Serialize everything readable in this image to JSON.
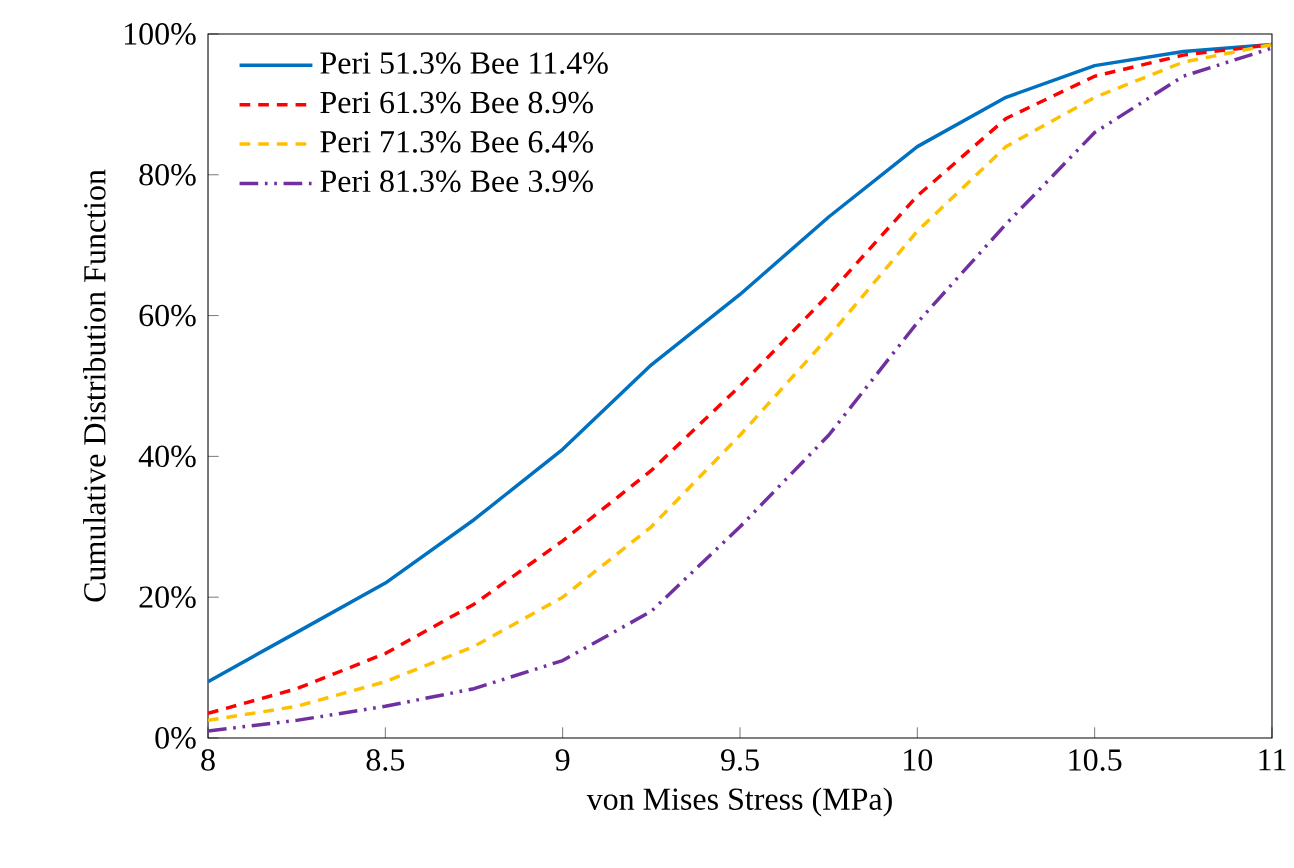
{
  "chart_data": {
    "type": "line",
    "xlabel": "von Mises Stress (MPa)",
    "ylabel": "Cumulative Distribution Function",
    "x": [
      8,
      8.25,
      8.5,
      8.75,
      9,
      9.25,
      9.5,
      9.75,
      10,
      10.25,
      10.5,
      10.75,
      11
    ],
    "series": [
      {
        "name": "Peri 51.3% Bee 11.4%",
        "color": "#0070c0",
        "line_style": "solid",
        "values": [
          8,
          15,
          22,
          31,
          41,
          53,
          63,
          74,
          84,
          91,
          95.5,
          97.5,
          98.5
        ]
      },
      {
        "name": "Peri 61.3% Bee 8.9%",
        "color": "#ff0000",
        "line_style": "dashed",
        "values": [
          3.5,
          7,
          12,
          19,
          28,
          38,
          50,
          63,
          77,
          88,
          94,
          97,
          98.5
        ]
      },
      {
        "name": "Peri 71.3% Bee 6.4%",
        "color": "#ffc000",
        "line_style": "dashed",
        "values": [
          2.5,
          4.5,
          8,
          13,
          20,
          30,
          43,
          57,
          72,
          84,
          91,
          96,
          98.5
        ]
      },
      {
        "name": "Peri 81.3% Bee 3.9%",
        "color": "#7030a0",
        "line_style": "dotted",
        "values": [
          1,
          2.5,
          4.5,
          7,
          11,
          18,
          30,
          43,
          59,
          73,
          86,
          94,
          98
        ]
      }
    ],
    "xlim": [
      8,
      11
    ],
    "xticks": [
      8,
      8.5,
      9,
      9.5,
      10,
      10.5,
      11
    ],
    "ylim": [
      0,
      100
    ],
    "yticks": [
      {
        "value": 0,
        "label": "0%"
      },
      {
        "value": 20,
        "label": "20%"
      },
      {
        "value": 40,
        "label": "40%"
      },
      {
        "value": 60,
        "label": "60%"
      },
      {
        "value": 80,
        "label": "80%"
      },
      {
        "value": 100,
        "label": "100%"
      }
    ],
    "grid": false,
    "legend": "top left",
    "marker": "none"
  }
}
